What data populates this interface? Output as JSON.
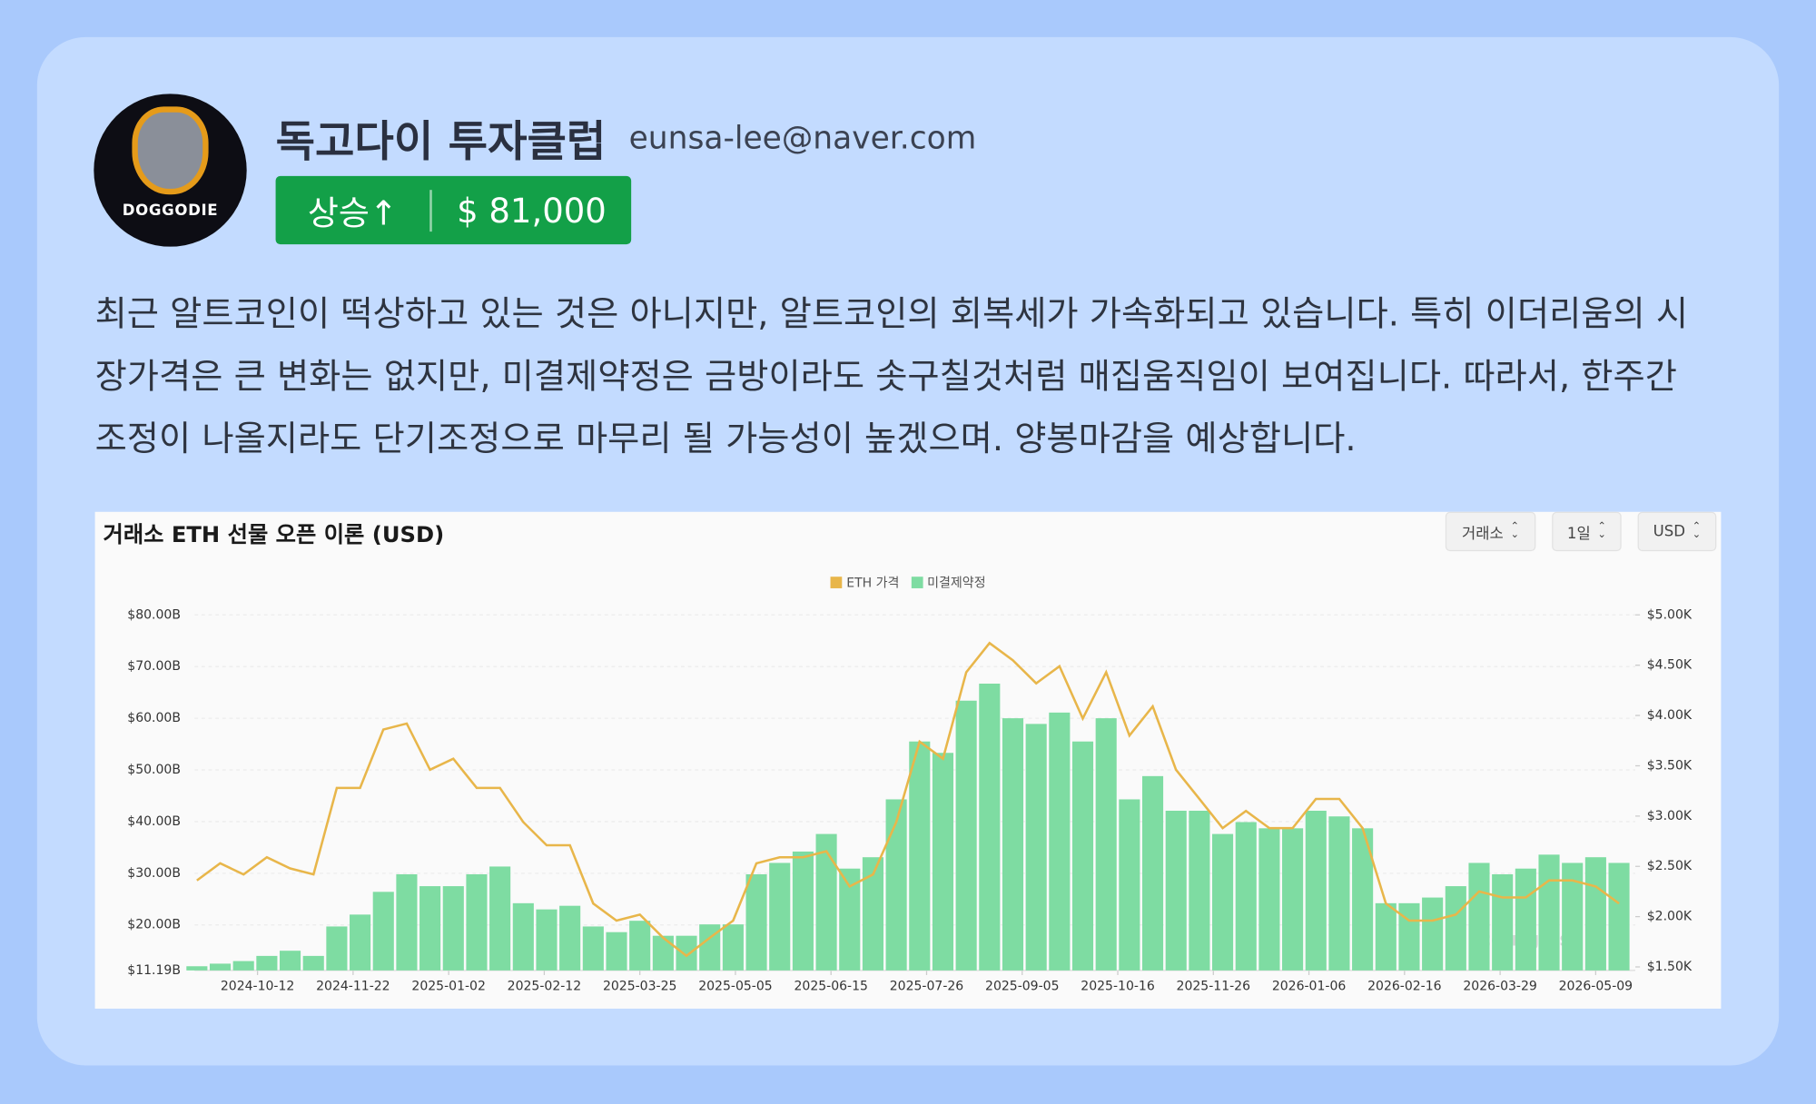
{
  "header": {
    "avatar_label": "DOGGODIE",
    "name": "독고다이 투자클럽",
    "email": "eunsa-lee@naver.com"
  },
  "badge": {
    "direction": "상승↑",
    "price": "$ 81,000"
  },
  "post": {
    "text": "최근 알트코인이 떡상하고 있는 것은 아니지만, 알트코인의 회복세가 가속화되고 있습니다. 특히 이더리움의 시장가격은 큰 변화는 없지만, 미결제약정은 금방이라도 솟구칠것처럼 매집움직임이 보여집니다. 따라서, 한주간 조정이 나올지라도 단기조정으로 마무리 될 가능성이 높겠으며. 양봉마감을 예상합니다."
  },
  "chart_controls": [
    "거래소",
    "1일",
    "USD"
  ],
  "chart_data": {
    "type": "combo",
    "title": "거래소 ETH 선물 오픈 이론 (USD)",
    "watermark": "coinglass",
    "grid": true,
    "legend": "top",
    "x": [
      "2024-09-16",
      "2024-09-26",
      "2024-10-06",
      "2024-10-16",
      "2024-10-26",
      "2024-11-05",
      "2024-11-15",
      "2024-11-25",
      "2024-12-05",
      "2024-12-15",
      "2024-12-25",
      "2025-01-04",
      "2025-01-14",
      "2025-01-24",
      "2025-02-03",
      "2025-02-13",
      "2025-02-23",
      "2025-03-05",
      "2025-03-15",
      "2025-03-25",
      "2025-04-04",
      "2025-04-14",
      "2025-04-24",
      "2025-05-04",
      "2025-05-14",
      "2025-05-24",
      "2025-06-03",
      "2025-06-13",
      "2025-06-23",
      "2025-07-03",
      "2025-07-13",
      "2025-07-23",
      "2025-08-02",
      "2025-08-12",
      "2025-08-22",
      "2025-09-01",
      "2025-09-11",
      "2025-09-21",
      "2025-10-01",
      "2025-10-11",
      "2025-10-21",
      "2025-10-31",
      "2025-11-10",
      "2025-11-20",
      "2025-11-30",
      "2025-12-10",
      "2025-12-20",
      "2025-12-30",
      "2026-01-09",
      "2026-01-19",
      "2026-01-29",
      "2026-02-08",
      "2026-02-18",
      "2026-02-28",
      "2026-03-10",
      "2026-03-20",
      "2026-03-30",
      "2026-04-09",
      "2026-04-19",
      "2026-04-29",
      "2026-05-09",
      "2026-05-19"
    ],
    "xlim": [
      "2024-09-15",
      "2026-05-26"
    ],
    "xticks": [
      "2024-10-12",
      "2024-11-22",
      "2025-01-02",
      "2025-02-12",
      "2025-03-25",
      "2025-05-05",
      "2025-06-15",
      "2025-07-26",
      "2025-09-05",
      "2025-10-16",
      "2025-11-26",
      "2026-01-06",
      "2026-02-16",
      "2026-03-29",
      "2026-05-09"
    ],
    "ylim": [
      11.19,
      80
    ],
    "yticks": [
      {
        "value": 11.19,
        "label": "$11.19B"
      },
      {
        "value": 20,
        "label": "$20.00B"
      },
      {
        "value": 30,
        "label": "$30.00B"
      },
      {
        "value": 40,
        "label": "$40.00B"
      },
      {
        "value": 50,
        "label": "$50.00B"
      },
      {
        "value": 60,
        "label": "$60.00B"
      },
      {
        "value": 70,
        "label": "$70.00B"
      },
      {
        "value": 80,
        "label": "$80.00B"
      }
    ],
    "y2lim": [
      1.465,
      5.0
    ],
    "y2ticks": [
      {
        "value": 1.5,
        "label": "$1.50K"
      },
      {
        "value": 2,
        "label": "$2.00K"
      },
      {
        "value": 2.5,
        "label": "$2.50K"
      },
      {
        "value": 3,
        "label": "$3.00K"
      },
      {
        "value": 3.5,
        "label": "$3.50K"
      },
      {
        "value": 4,
        "label": "$4.00K"
      },
      {
        "value": 4.5,
        "label": "$4.50K"
      },
      {
        "value": 5,
        "label": "$5.00K"
      }
    ],
    "series": [
      {
        "name": "미결제약정",
        "type": "bar",
        "color": "#7edca2",
        "values": [
          12,
          12.5,
          13,
          14,
          15,
          14,
          19.7,
          22,
          26.4,
          29.8,
          27.5,
          27.5,
          29.8,
          31.3,
          24.2,
          23,
          23.7,
          19.7,
          18.6,
          20.8,
          17.9,
          17.9,
          20.1,
          20.1,
          29.8,
          32,
          34.2,
          37.6,
          30.9,
          33.1,
          44.3,
          55.5,
          53.3,
          63.4,
          66.7,
          60,
          58.9,
          61.1,
          55.5,
          60,
          44.3,
          48.8,
          42.1,
          42.1,
          37.6,
          39.9,
          38.7,
          38.7,
          42.1,
          41,
          38.7,
          24.2,
          24.2,
          25.3,
          27.5,
          32,
          29.8,
          30.9,
          33.6,
          32,
          33.1,
          32
        ]
      },
      {
        "name": "ETH 가격",
        "type": "line",
        "axis": "y2",
        "color": "#e8b64a",
        "values": [
          2.36,
          2.53,
          2.42,
          2.59,
          2.48,
          2.42,
          3.28,
          3.28,
          3.86,
          3.92,
          3.46,
          3.57,
          3.28,
          3.28,
          2.94,
          2.71,
          2.71,
          2.13,
          1.96,
          2.02,
          1.79,
          1.61,
          1.79,
          1.96,
          2.53,
          2.59,
          2.59,
          2.65,
          2.3,
          2.42,
          2.94,
          3.74,
          3.57,
          4.43,
          4.72,
          4.55,
          4.32,
          4.49,
          3.97,
          4.43,
          3.8,
          4.09,
          3.46,
          3.17,
          2.88,
          3.05,
          2.88,
          2.88,
          3.17,
          3.17,
          2.88,
          2.13,
          1.96,
          1.96,
          2.02,
          2.25,
          2.19,
          2.19,
          2.36,
          2.36,
          2.3,
          2.13
        ]
      }
    ]
  }
}
